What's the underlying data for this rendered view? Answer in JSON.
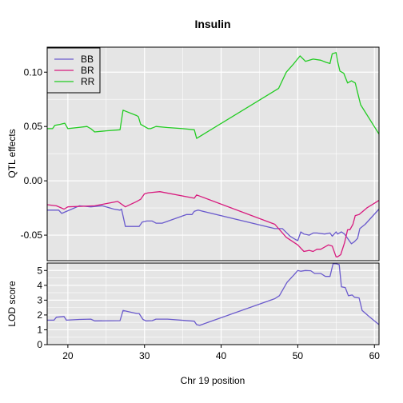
{
  "chart_data": [
    {
      "type": "line",
      "title": "Insulin",
      "xlabel": "",
      "ylabel": "QTL effects",
      "xlim": [
        17.3,
        60.6
      ],
      "ylim": [
        -0.0735,
        0.123
      ],
      "yticks": [
        -0.05,
        0.0,
        0.05,
        0.1
      ],
      "ytick_labels": [
        "-0.05",
        "0.00",
        "0.05",
        "0.10"
      ],
      "grid": true,
      "legend": "top-left",
      "series": [
        {
          "name": "BB",
          "color": "#6A5ACD",
          "x": [
            17.3,
            18.8,
            19.2,
            20.5,
            21.5,
            23.0,
            24.5,
            26.0,
            26.8,
            27.0,
            27.5,
            29.3,
            29.7,
            30.3,
            31.0,
            31.5,
            32.3,
            35.5,
            36.2,
            36.5,
            37.0,
            47.0,
            48.0,
            49.0,
            49.7,
            50.0,
            50.4,
            50.8,
            51.5,
            52.0,
            52.5,
            53.5,
            54.2,
            54.5,
            55.0,
            55.2,
            55.7,
            56.1,
            56.5,
            57.0,
            57.4,
            57.8,
            58.1,
            58.8,
            60.6
          ],
          "y": [
            -0.027,
            -0.027,
            -0.03,
            -0.026,
            -0.023,
            -0.024,
            -0.023,
            -0.026,
            -0.027,
            -0.026,
            -0.042,
            -0.042,
            -0.038,
            -0.037,
            -0.037,
            -0.039,
            -0.039,
            -0.031,
            -0.031,
            -0.028,
            -0.027,
            -0.044,
            -0.044,
            -0.051,
            -0.054,
            -0.055,
            -0.047,
            -0.049,
            -0.05,
            -0.048,
            -0.048,
            -0.049,
            -0.048,
            -0.051,
            -0.047,
            -0.049,
            -0.047,
            -0.049,
            -0.053,
            -0.058,
            -0.056,
            -0.053,
            -0.044,
            -0.04,
            -0.026
          ]
        },
        {
          "name": "BR",
          "color": "#D81B7E",
          "x": [
            17.3,
            18.5,
            19.5,
            20.0,
            23.5,
            26.5,
            27.5,
            29.0,
            29.5,
            30.0,
            30.5,
            32.0,
            36.5,
            36.8,
            47.0,
            48.5,
            50.0,
            50.8,
            51.5,
            52.0,
            52.5,
            53.0,
            54.0,
            54.5,
            55.0,
            55.2,
            55.6,
            56.1,
            56.5,
            56.8,
            57.2,
            57.5,
            58.0,
            58.5,
            59.0,
            60.6
          ],
          "y": [
            -0.022,
            -0.023,
            -0.026,
            -0.024,
            -0.023,
            -0.019,
            -0.024,
            -0.019,
            -0.017,
            -0.012,
            -0.011,
            -0.01,
            -0.016,
            -0.013,
            -0.04,
            -0.052,
            -0.059,
            -0.065,
            -0.064,
            -0.065,
            -0.063,
            -0.063,
            -0.059,
            -0.06,
            -0.07,
            -0.07,
            -0.068,
            -0.057,
            -0.045,
            -0.045,
            -0.04,
            -0.032,
            -0.031,
            -0.028,
            -0.025,
            -0.018
          ]
        },
        {
          "name": "RR",
          "color": "#22CC22",
          "x": [
            17.3,
            18.0,
            18.3,
            19.0,
            19.6,
            20.0,
            22.5,
            23.0,
            23.5,
            25.0,
            26.8,
            27.2,
            29.0,
            29.2,
            29.5,
            30.5,
            30.8,
            31.5,
            33.0,
            35.0,
            36.5,
            36.8,
            47.5,
            48.5,
            49.5,
            50.3,
            51.0,
            52.0,
            53.0,
            53.7,
            54.2,
            54.5,
            55.0,
            55.2,
            55.5,
            56.0,
            56.5,
            57.0,
            57.5,
            58.2,
            60.6
          ],
          "y": [
            0.048,
            0.048,
            0.051,
            0.052,
            0.053,
            0.048,
            0.05,
            0.048,
            0.045,
            0.046,
            0.047,
            0.065,
            0.06,
            0.059,
            0.052,
            0.048,
            0.048,
            0.05,
            0.049,
            0.048,
            0.047,
            0.039,
            0.085,
            0.1,
            0.108,
            0.115,
            0.11,
            0.112,
            0.111,
            0.109,
            0.108,
            0.117,
            0.118,
            0.11,
            0.101,
            0.099,
            0.09,
            0.092,
            0.09,
            0.07,
            0.043
          ]
        }
      ]
    },
    {
      "type": "line",
      "title": "",
      "xlabel": "Chr 19 position",
      "ylabel": "LOD score",
      "xlim": [
        17.3,
        60.6
      ],
      "ylim": [
        0,
        5.5
      ],
      "xticks": [
        20,
        30,
        40,
        50,
        60
      ],
      "xtick_labels": [
        "20",
        "30",
        "40",
        "50",
        "60"
      ],
      "yticks": [
        0,
        1,
        2,
        3,
        4,
        5
      ],
      "ytick_labels": [
        "0",
        "1",
        "2",
        "3",
        "4",
        "5"
      ],
      "grid": true,
      "series": [
        {
          "color": "#6A5ACD",
          "x": [
            17.3,
            18.2,
            18.5,
            19.5,
            19.8,
            21.5,
            23.0,
            23.5,
            26.8,
            27.2,
            29.0,
            29.3,
            29.8,
            30.2,
            31.0,
            31.5,
            33.0,
            36.5,
            36.8,
            37.2,
            47.0,
            47.6,
            48.6,
            49.5,
            50.0,
            50.4,
            51.0,
            51.7,
            52.2,
            53.0,
            53.6,
            54.2,
            54.6,
            55.0,
            55.4,
            55.7,
            56.2,
            56.6,
            57.1,
            57.4,
            58.0,
            58.4,
            59.3,
            60.6
          ],
          "y": [
            1.65,
            1.65,
            1.85,
            1.9,
            1.65,
            1.7,
            1.72,
            1.6,
            1.62,
            2.3,
            2.1,
            2.1,
            1.7,
            1.6,
            1.62,
            1.72,
            1.72,
            1.58,
            1.35,
            1.3,
            3.1,
            3.3,
            4.2,
            4.7,
            5.0,
            4.95,
            5.0,
            4.98,
            4.8,
            4.8,
            4.6,
            4.6,
            5.45,
            5.45,
            5.4,
            3.9,
            3.85,
            3.3,
            3.35,
            3.2,
            3.15,
            2.3,
            1.9,
            1.35
          ]
        }
      ]
    }
  ]
}
